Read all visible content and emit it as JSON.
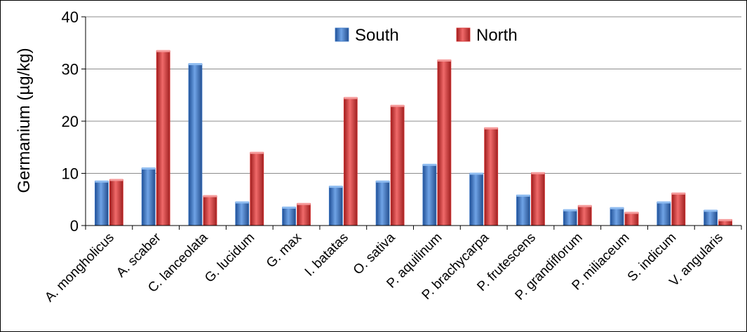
{
  "chart_data": {
    "type": "bar",
    "ylabel": "Germanium (µg/kg)",
    "ylim": [
      0,
      40
    ],
    "yticks": [
      0,
      10,
      20,
      30,
      40
    ],
    "grid": true,
    "legend_position": "top-center",
    "categories": [
      "A. mongholicus",
      "A. scaber",
      "C. lanceolata",
      "G. lucidum",
      "G. max",
      "I. batatas",
      "O. sativa",
      "P. aquilinum",
      "P. brachycarpa",
      "P. frutescens",
      "P. grandiflorum",
      "P. miliaceum",
      "S. indicum",
      "V. angularis"
    ],
    "series": [
      {
        "name": "South",
        "color": "#3b76c4",
        "values": [
          8.5,
          11.0,
          31.0,
          4.5,
          3.5,
          7.5,
          8.5,
          11.7,
          10.0,
          5.8,
          3.0,
          3.4,
          4.5,
          2.9
        ]
      },
      {
        "name": "North",
        "color": "#d63333",
        "values": [
          8.8,
          33.5,
          5.7,
          14.0,
          4.2,
          24.5,
          23.0,
          31.7,
          18.7,
          10.1,
          3.8,
          2.5,
          6.2,
          1.1
        ]
      }
    ]
  }
}
